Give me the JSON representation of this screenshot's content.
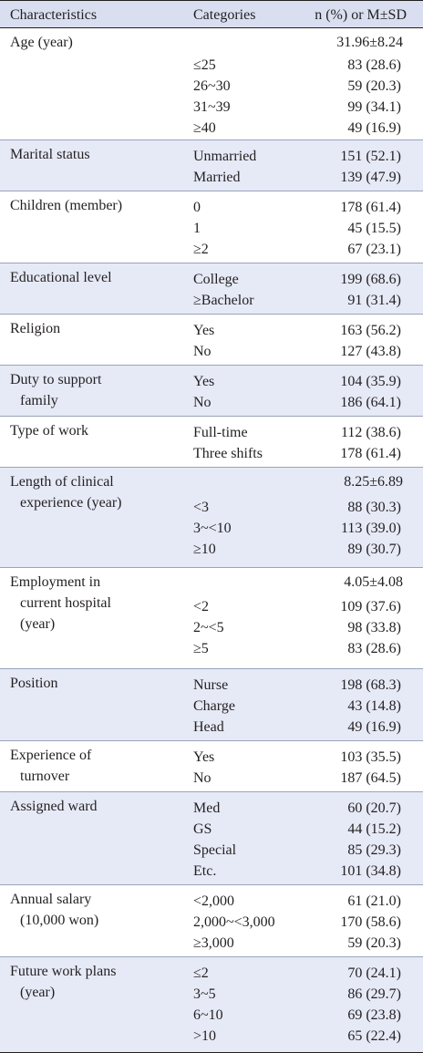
{
  "header": {
    "characteristics": "Characteristics",
    "categories": "Categories",
    "value": "n (%) or M±SD"
  },
  "groups": [
    {
      "label_lines": [
        "Age (year)"
      ],
      "rows": [
        {
          "cat": "",
          "val": "31.96±8.24"
        },
        {
          "cat": "≤25",
          "val": "83 (28.6)"
        },
        {
          "cat": "26~30",
          "val": "59 (20.3)"
        },
        {
          "cat": "31~39",
          "val": "99 (34.1)"
        },
        {
          "cat": "≥40",
          "val": "49 (16.9)"
        }
      ]
    },
    {
      "label_lines": [
        "Marital status"
      ],
      "rows": [
        {
          "cat": "Unmarried",
          "val": "151 (52.1)"
        },
        {
          "cat": "Married",
          "val": "139 (47.9)"
        }
      ]
    },
    {
      "label_lines": [
        "Children (member)"
      ],
      "rows": [
        {
          "cat": "0",
          "val": "178 (61.4)"
        },
        {
          "cat": "1",
          "val": "45 (15.5)"
        },
        {
          "cat": "≥2",
          "val": "67 (23.1)"
        }
      ]
    },
    {
      "label_lines": [
        "Educational level"
      ],
      "rows": [
        {
          "cat": "College",
          "val": "199 (68.6)"
        },
        {
          "cat": "≥Bachelor",
          "val": "91 (31.4)"
        }
      ]
    },
    {
      "label_lines": [
        "Religion"
      ],
      "rows": [
        {
          "cat": "Yes",
          "val": "163 (56.2)"
        },
        {
          "cat": "No",
          "val": "127 (43.8)"
        }
      ]
    },
    {
      "label_lines": [
        "Duty to support",
        "family"
      ],
      "rows": [
        {
          "cat": "Yes",
          "val": "104 (35.9)"
        },
        {
          "cat": "No",
          "val": "186 (64.1)"
        }
      ]
    },
    {
      "label_lines": [
        "Type of work"
      ],
      "rows": [
        {
          "cat": "Full-time",
          "val": "112 (38.6)"
        },
        {
          "cat": "Three shifts",
          "val": "178 (61.4)"
        }
      ]
    },
    {
      "label_lines": [
        "Length of clinical",
        "experience (year)"
      ],
      "rows": [
        {
          "cat": "",
          "val": "8.25±6.89"
        },
        {
          "cat": "<3",
          "val": "88 (30.3)"
        },
        {
          "cat": "3~<10",
          "val": "113 (39.0)"
        },
        {
          "cat": "≥10",
          "val": "89 (30.7)"
        }
      ]
    },
    {
      "label_lines": [
        "Employment in",
        "current hospital",
        "(year)"
      ],
      "rows": [
        {
          "cat": "",
          "val": "4.05±4.08"
        },
        {
          "cat": "<2",
          "val": "109 (37.6)"
        },
        {
          "cat": "2~<5",
          "val": "98 (33.8)"
        },
        {
          "cat": "≥5",
          "val": "83 (28.6)"
        }
      ]
    },
    {
      "label_lines": [
        "Position"
      ],
      "rows": [
        {
          "cat": "Nurse",
          "val": "198 (68.3)"
        },
        {
          "cat": "Charge",
          "val": "43 (14.8)"
        },
        {
          "cat": "Head",
          "val": "49 (16.9)"
        }
      ]
    },
    {
      "label_lines": [
        "Experience of",
        "turnover"
      ],
      "rows": [
        {
          "cat": "Yes",
          "val": "103 (35.5)"
        },
        {
          "cat": "No",
          "val": "187 (64.5)"
        }
      ]
    },
    {
      "label_lines": [
        "Assigned ward"
      ],
      "rows": [
        {
          "cat": "Med",
          "val": "60 (20.7)"
        },
        {
          "cat": "GS",
          "val": "44 (15.2)"
        },
        {
          "cat": "Special",
          "val": "85 (29.3)"
        },
        {
          "cat": "Etc.",
          "val": "101 (34.8)"
        }
      ]
    },
    {
      "label_lines": [
        "Annual salary",
        "(10,000 won)"
      ],
      "rows": [
        {
          "cat": "<2,000",
          "val": "61 (21.0)"
        },
        {
          "cat": "2,000~<3,000",
          "val": "170 (58.6)"
        },
        {
          "cat": "≥3,000",
          "val": "59 (20.3)"
        }
      ]
    },
    {
      "label_lines": [
        "Future work plans",
        "(year)"
      ],
      "rows": [
        {
          "cat": "≤2",
          "val": "70 (24.1)"
        },
        {
          "cat": "3~5",
          "val": "86 (29.7)"
        },
        {
          "cat": "6~10",
          "val": "69 (23.8)"
        },
        {
          "cat": ">10",
          "val": "65 (22.4)"
        }
      ]
    }
  ]
}
